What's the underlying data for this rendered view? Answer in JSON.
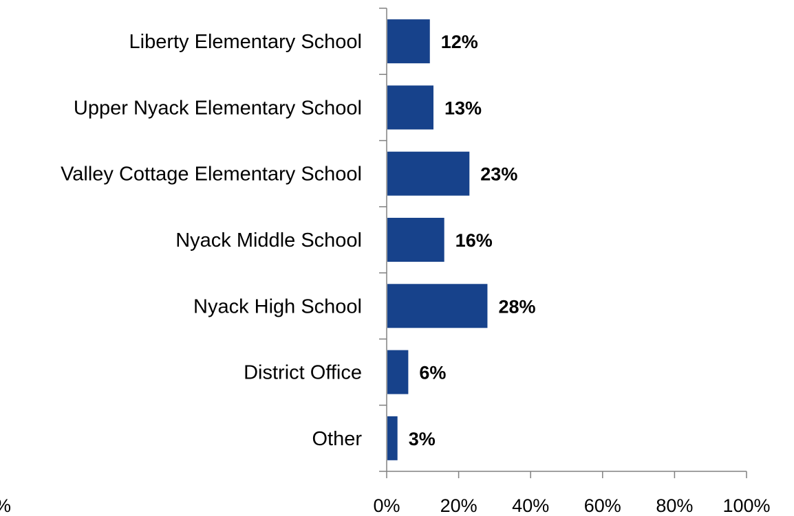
{
  "chart_data": {
    "type": "bar",
    "orientation": "horizontal",
    "categories": [
      "Liberty Elementary School",
      "Upper Nyack Elementary School",
      "Valley Cottage Elementary School",
      "Nyack Middle School",
      "Nyack High School",
      "District Office",
      "Other"
    ],
    "values": [
      12,
      13,
      23,
      16,
      28,
      6,
      3
    ],
    "value_labels": [
      "12%",
      "13%",
      "23%",
      "16%",
      "28%",
      "6%",
      "3%"
    ],
    "xlim": [
      0,
      100
    ],
    "x_ticks": [
      0,
      20,
      40,
      60,
      80,
      100
    ],
    "x_tick_labels": [
      "0%",
      "20%",
      "40%",
      "60%",
      "80%",
      "100%"
    ],
    "partial_left_label": "%",
    "grid": false,
    "colors": {
      "bar": "#17428B",
      "axis": "#808080",
      "text": "#000000"
    }
  }
}
